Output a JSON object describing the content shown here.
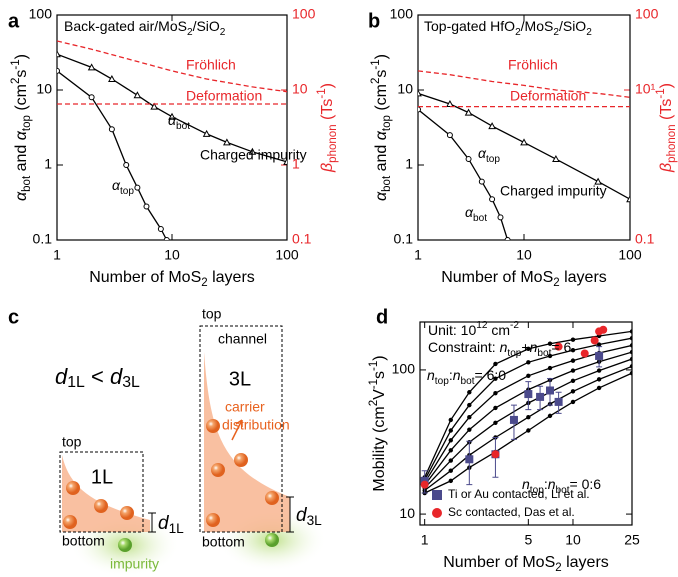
{
  "chart_data": [
    {
      "type": "line",
      "panel": "a",
      "title": [
        "Back-gated air/MoS",
        {
          "text": "2",
          "script": "sub"
        },
        "/SiO",
        {
          "text": "2",
          "script": "sub"
        }
      ],
      "xlabel": [
        "Number of MoS",
        {
          "text": "2",
          "script": "sub"
        },
        " layers"
      ],
      "ylabel": [
        {
          "text": "α",
          "italic": true
        },
        {
          "text": "bot",
          "script": "sub"
        },
        " and ",
        {
          "text": "α",
          "italic": true
        },
        {
          "text": "top",
          "script": "sub"
        },
        " (cm",
        {
          "text": "2",
          "script": "super"
        },
        "s",
        {
          "text": "-1",
          "script": "super"
        },
        ")"
      ],
      "y2label": [
        {
          "text": "β",
          "italic": true
        },
        {
          "text": "phonon",
          "script": "sub"
        },
        " (Ts",
        {
          "text": "-1",
          "script": "super"
        },
        ")"
      ],
      "xscale": "log",
      "yscale": "log",
      "xlim": [
        1,
        100
      ],
      "ylim": [
        0.1,
        100
      ],
      "y2lim": [
        0.1,
        100
      ],
      "xticks": [
        1,
        10,
        100
      ],
      "yticks": [
        0.1,
        1,
        10,
        100
      ],
      "y2ticks": [
        0.1,
        1,
        10,
        100
      ],
      "y2color": "#e8262a",
      "series": [
        {
          "color": "#000000",
          "marker": "triangle-open",
          "x": [
            1,
            2,
            3,
            5,
            7,
            10,
            20,
            30,
            50,
            100
          ],
          "values": [
            30,
            20,
            14,
            8.5,
            6,
            4.4,
            2.6,
            2,
            1.5,
            1.1
          ]
        },
        {
          "color": "#000000",
          "marker": "circle-open",
          "x": [
            1,
            2,
            3,
            4,
            5,
            6,
            8,
            9
          ],
          "values": [
            18,
            8,
            3,
            1,
            0.5,
            0.28,
            0.14,
            0.1
          ]
        },
        {
          "color": "#e8262a",
          "dash": true,
          "axis": "y2",
          "x": [
            1,
            2,
            5,
            10,
            20,
            50,
            100
          ],
          "values": [
            45,
            35,
            24,
            18,
            14,
            11,
            9.5
          ]
        },
        {
          "color": "#e8262a",
          "dash": true,
          "axis": "y2",
          "x": [
            1,
            100
          ],
          "values": [
            6.5,
            6.5
          ]
        }
      ],
      "annotations": [
        {
          "text": "Fröhlich",
          "color": "#e8262a"
        },
        {
          "text": "Deformation",
          "color": "#e8262a"
        },
        {
          "text": [
            {
              "text": "α",
              "italic": true
            },
            {
              "text": "bot",
              "script": "sub"
            }
          ],
          "color": "#000000"
        },
        {
          "text": "Charged impurity",
          "color": "#000000"
        },
        {
          "text": [
            {
              "text": "α",
              "italic": true
            },
            {
              "text": "top",
              "script": "sub"
            }
          ],
          "color": "#000000"
        }
      ]
    },
    {
      "type": "line",
      "panel": "b",
      "title": [
        "Top-gated HfO",
        {
          "text": "2",
          "script": "sub"
        },
        "/MoS",
        {
          "text": "2",
          "script": "sub"
        },
        "/SiO",
        {
          "text": "2",
          "script": "sub"
        }
      ],
      "xlabel": [
        "Number of MoS",
        {
          "text": "2",
          "script": "sub"
        },
        " layers"
      ],
      "ylabel": [
        {
          "text": "α",
          "italic": true
        },
        {
          "text": "bot",
          "script": "sub"
        },
        " and ",
        {
          "text": "α",
          "italic": true
        },
        {
          "text": "top",
          "script": "sub"
        },
        " (cm",
        {
          "text": "2",
          "script": "super"
        },
        "s",
        {
          "text": "-1",
          "script": "super"
        },
        ")"
      ],
      "y2label": [
        {
          "text": "β",
          "italic": true
        },
        {
          "text": "phonon",
          "script": "sub"
        },
        " (Ts",
        {
          "text": "-1",
          "script": "super"
        },
        ")"
      ],
      "xscale": "log",
      "yscale": "log",
      "xlim": [
        1,
        100
      ],
      "ylim": [
        0.1,
        100
      ],
      "y2lim": [
        0.1,
        100
      ],
      "xticks": [
        1,
        10,
        100
      ],
      "yticks": [
        0.1,
        1,
        10,
        100
      ],
      "y2ticks": [
        0.1,
        {
          "value": 10,
          "label": "10¹"
        },
        100
      ],
      "y2color": "#e8262a",
      "series": [
        {
          "color": "#000000",
          "marker": "triangle-open",
          "x": [
            1,
            2,
            3,
            5,
            10,
            20,
            50,
            100
          ],
          "values": [
            9,
            6.5,
            5,
            3.3,
            2,
            1.2,
            0.6,
            0.35
          ]
        },
        {
          "color": "#000000",
          "marker": "circle-open",
          "x": [
            1,
            2,
            3,
            4,
            5,
            6,
            7
          ],
          "values": [
            5.5,
            2.5,
            1.2,
            0.6,
            0.35,
            0.2,
            0.1
          ]
        },
        {
          "color": "#e8262a",
          "dash": true,
          "axis": "y2",
          "x": [
            1,
            2,
            5,
            10,
            20,
            50,
            100
          ],
          "values": [
            18,
            16,
            13,
            11.5,
            10,
            9,
            8
          ]
        },
        {
          "color": "#e8262a",
          "dash": true,
          "axis": "y2",
          "x": [
            1,
            100
          ],
          "values": [
            6,
            6
          ]
        }
      ],
      "annotations": [
        {
          "text": "Fröhlich",
          "color": "#e8262a"
        },
        {
          "text": "Deformation",
          "color": "#e8262a"
        },
        {
          "text": [
            {
              "text": "α",
              "italic": true
            },
            {
              "text": "top",
              "script": "sub"
            }
          ],
          "color": "#000000"
        },
        {
          "text": "Charged impurity",
          "color": "#000000"
        },
        {
          "text": [
            {
              "text": "α",
              "italic": true
            },
            {
              "text": "bot",
              "script": "sub"
            }
          ],
          "color": "#000000"
        }
      ]
    },
    {
      "type": "line",
      "panel": "d",
      "xlabel": [
        "Number of MoS",
        {
          "text": "2",
          "script": "sub"
        },
        " layers"
      ],
      "ylabel": [
        "Mobility (cm",
        {
          "text": "2",
          "script": "super"
        },
        "V",
        {
          "text": "-1",
          "script": "super"
        },
        "s",
        {
          "text": "-1",
          "script": "super"
        },
        ")"
      ],
      "xscale": "log",
      "yscale": "log",
      "xlim": [
        0.93,
        25
      ],
      "ylim": [
        8.4,
        215
      ],
      "xticks": [
        1,
        5,
        10,
        25
      ],
      "yticks": [
        10,
        100
      ],
      "legend": "lower right",
      "x": [
        1,
        1.5,
        2,
        3,
        5,
        7,
        10,
        15,
        25
      ],
      "series": [
        {
          "color": "#000000",
          "marker": "dot",
          "values": [
            18,
            45,
            70,
            110,
            140,
            152,
            162,
            172,
            185
          ]
        },
        {
          "color": "#000000",
          "marker": "dot",
          "values": [
            17.2,
            38,
            57,
            87,
            113,
            125,
            137,
            150,
            166
          ]
        },
        {
          "color": "#000000",
          "marker": "dot",
          "values": [
            16.5,
            32.5,
            47,
            69,
            91,
            103,
            116,
            131,
            148
          ]
        },
        {
          "color": "#000000",
          "marker": "dot",
          "values": [
            15.9,
            27.7,
            38.5,
            54.5,
            73,
            85,
            99,
            114,
            133
          ]
        },
        {
          "color": "#000000",
          "marker": "dot",
          "values": [
            15.2,
            23.5,
            31.5,
            43,
            59,
            70,
            84,
            99,
            119
          ]
        },
        {
          "color": "#000000",
          "marker": "dot",
          "values": [
            14.6,
            20,
            25.6,
            34,
            47,
            58,
            71,
            86,
            106
          ]
        },
        {
          "color": "#000000",
          "marker": "dot",
          "values": [
            14,
            17,
            21,
            27,
            38,
            48,
            60,
            75,
            95
          ]
        },
        {
          "name": "Ti or Au contacted, Li et al.",
          "color": "#4b4a8c",
          "marker": "square",
          "x": [
            1,
            2,
            3,
            4,
            5,
            6,
            7,
            8,
            15
          ],
          "values": [
            17,
            24,
            26,
            45,
            68,
            65,
            72,
            60,
            125
          ],
          "errors": [
            3,
            8,
            8,
            12,
            15,
            12,
            15,
            10,
            20
          ]
        },
        {
          "name": "Sc contacted, Das et al.",
          "color": "#e8262a",
          "marker": "circle",
          "x": [
            1,
            3,
            8,
            12,
            14,
            15,
            16
          ],
          "values": [
            16,
            26,
            145,
            130,
            160,
            185,
            190
          ]
        }
      ],
      "annotations": [
        {
          "text": [
            "Unit: 10",
            {
              "text": "12",
              "script": "super"
            },
            " cm",
            {
              "text": "-2",
              "script": "super"
            }
          ],
          "color": "#000000"
        },
        {
          "text": [
            "Constraint: ",
            {
              "text": "n",
              "italic": true
            },
            {
              "text": "top",
              "script": "sub"
            },
            "+",
            {
              "text": "n",
              "italic": true
            },
            {
              "text": "bot",
              "script": "sub"
            },
            "= 6"
          ],
          "color": "#000000"
        },
        {
          "text": [
            {
              "text": "n",
              "italic": true
            },
            {
              "text": "top",
              "script": "sub"
            },
            ":",
            {
              "text": "n",
              "italic": true
            },
            {
              "text": "bot",
              "script": "sub"
            },
            "= 6:0"
          ],
          "color": "#000000"
        },
        {
          "text": [
            {
              "text": "n",
              "italic": true
            },
            {
              "text": "top",
              "script": "sub"
            },
            ":",
            {
              "text": "n",
              "italic": true
            },
            {
              "text": "bot",
              "script": "sub"
            },
            "= 0:6"
          ],
          "color": "#000000"
        }
      ]
    }
  ],
  "diagram": {
    "panel": "c",
    "inequality": [
      {
        "text": "d",
        "italic": true
      },
      {
        "text": "1L",
        "script": "sub"
      },
      " < ",
      {
        "text": "d",
        "italic": true
      },
      {
        "text": "3L",
        "script": "sub"
      }
    ],
    "top_1l": "top",
    "bottom_1l": "bottom",
    "layer_1l": "1L",
    "top_3l": "top",
    "channel": "channel",
    "layer_3l": "3L",
    "bottom_3l": "bottom",
    "carrier": "carrier",
    "distribution": "distribution",
    "impurity": "impurity",
    "d1": [
      {
        "text": "d",
        "italic": true
      },
      {
        "text": "1L",
        "script": "sub"
      }
    ],
    "d3": [
      {
        "text": "d",
        "italic": true
      },
      {
        "text": "3L",
        "script": "sub"
      }
    ]
  }
}
